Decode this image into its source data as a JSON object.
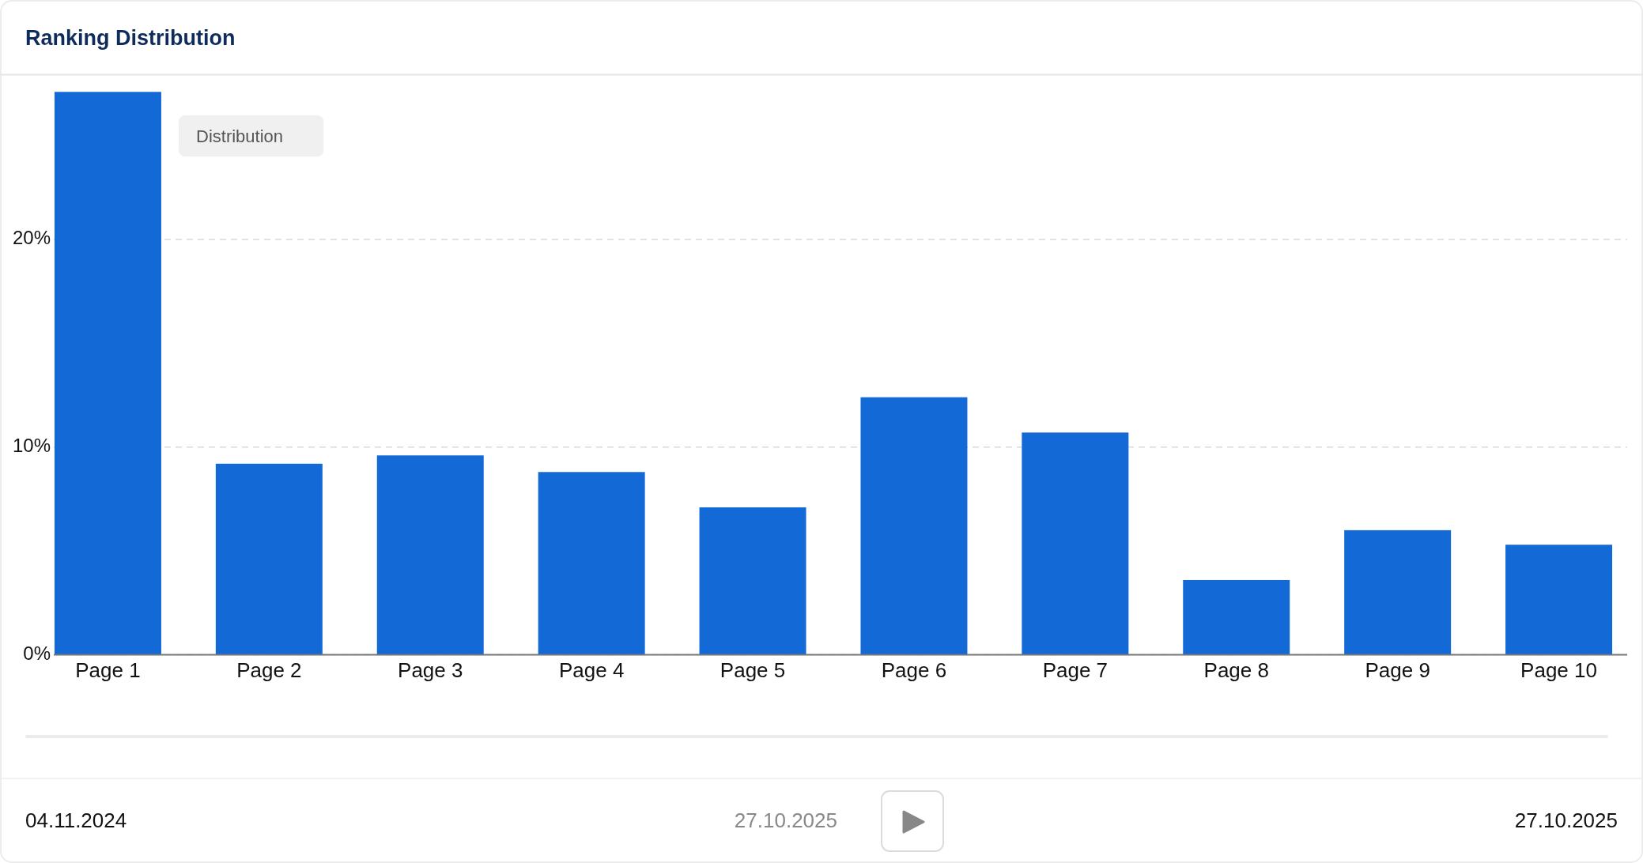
{
  "chart_data": {
    "type": "bar",
    "title": "Ranking Distribution",
    "categories": [
      "Page 1",
      "Page 2",
      "Page 3",
      "Page 4",
      "Page 5",
      "Page 6",
      "Page 7",
      "Page 8",
      "Page 9",
      "Page 10"
    ],
    "values": [
      27.1,
      9.2,
      9.6,
      8.8,
      7.1,
      12.4,
      10.7,
      3.6,
      6.0,
      5.3
    ],
    "color": "#1369d6",
    "ylim": [
      0,
      28
    ],
    "yticks": [
      {
        "value": 0,
        "label": "0%"
      },
      {
        "value": 10,
        "label": "10%"
      },
      {
        "value": 20,
        "label": "20%"
      }
    ],
    "grid": "y",
    "annotations": [
      "Distribution",
      "04.11.2024",
      "27.10.2025",
      "27.10.2025"
    ]
  }
}
